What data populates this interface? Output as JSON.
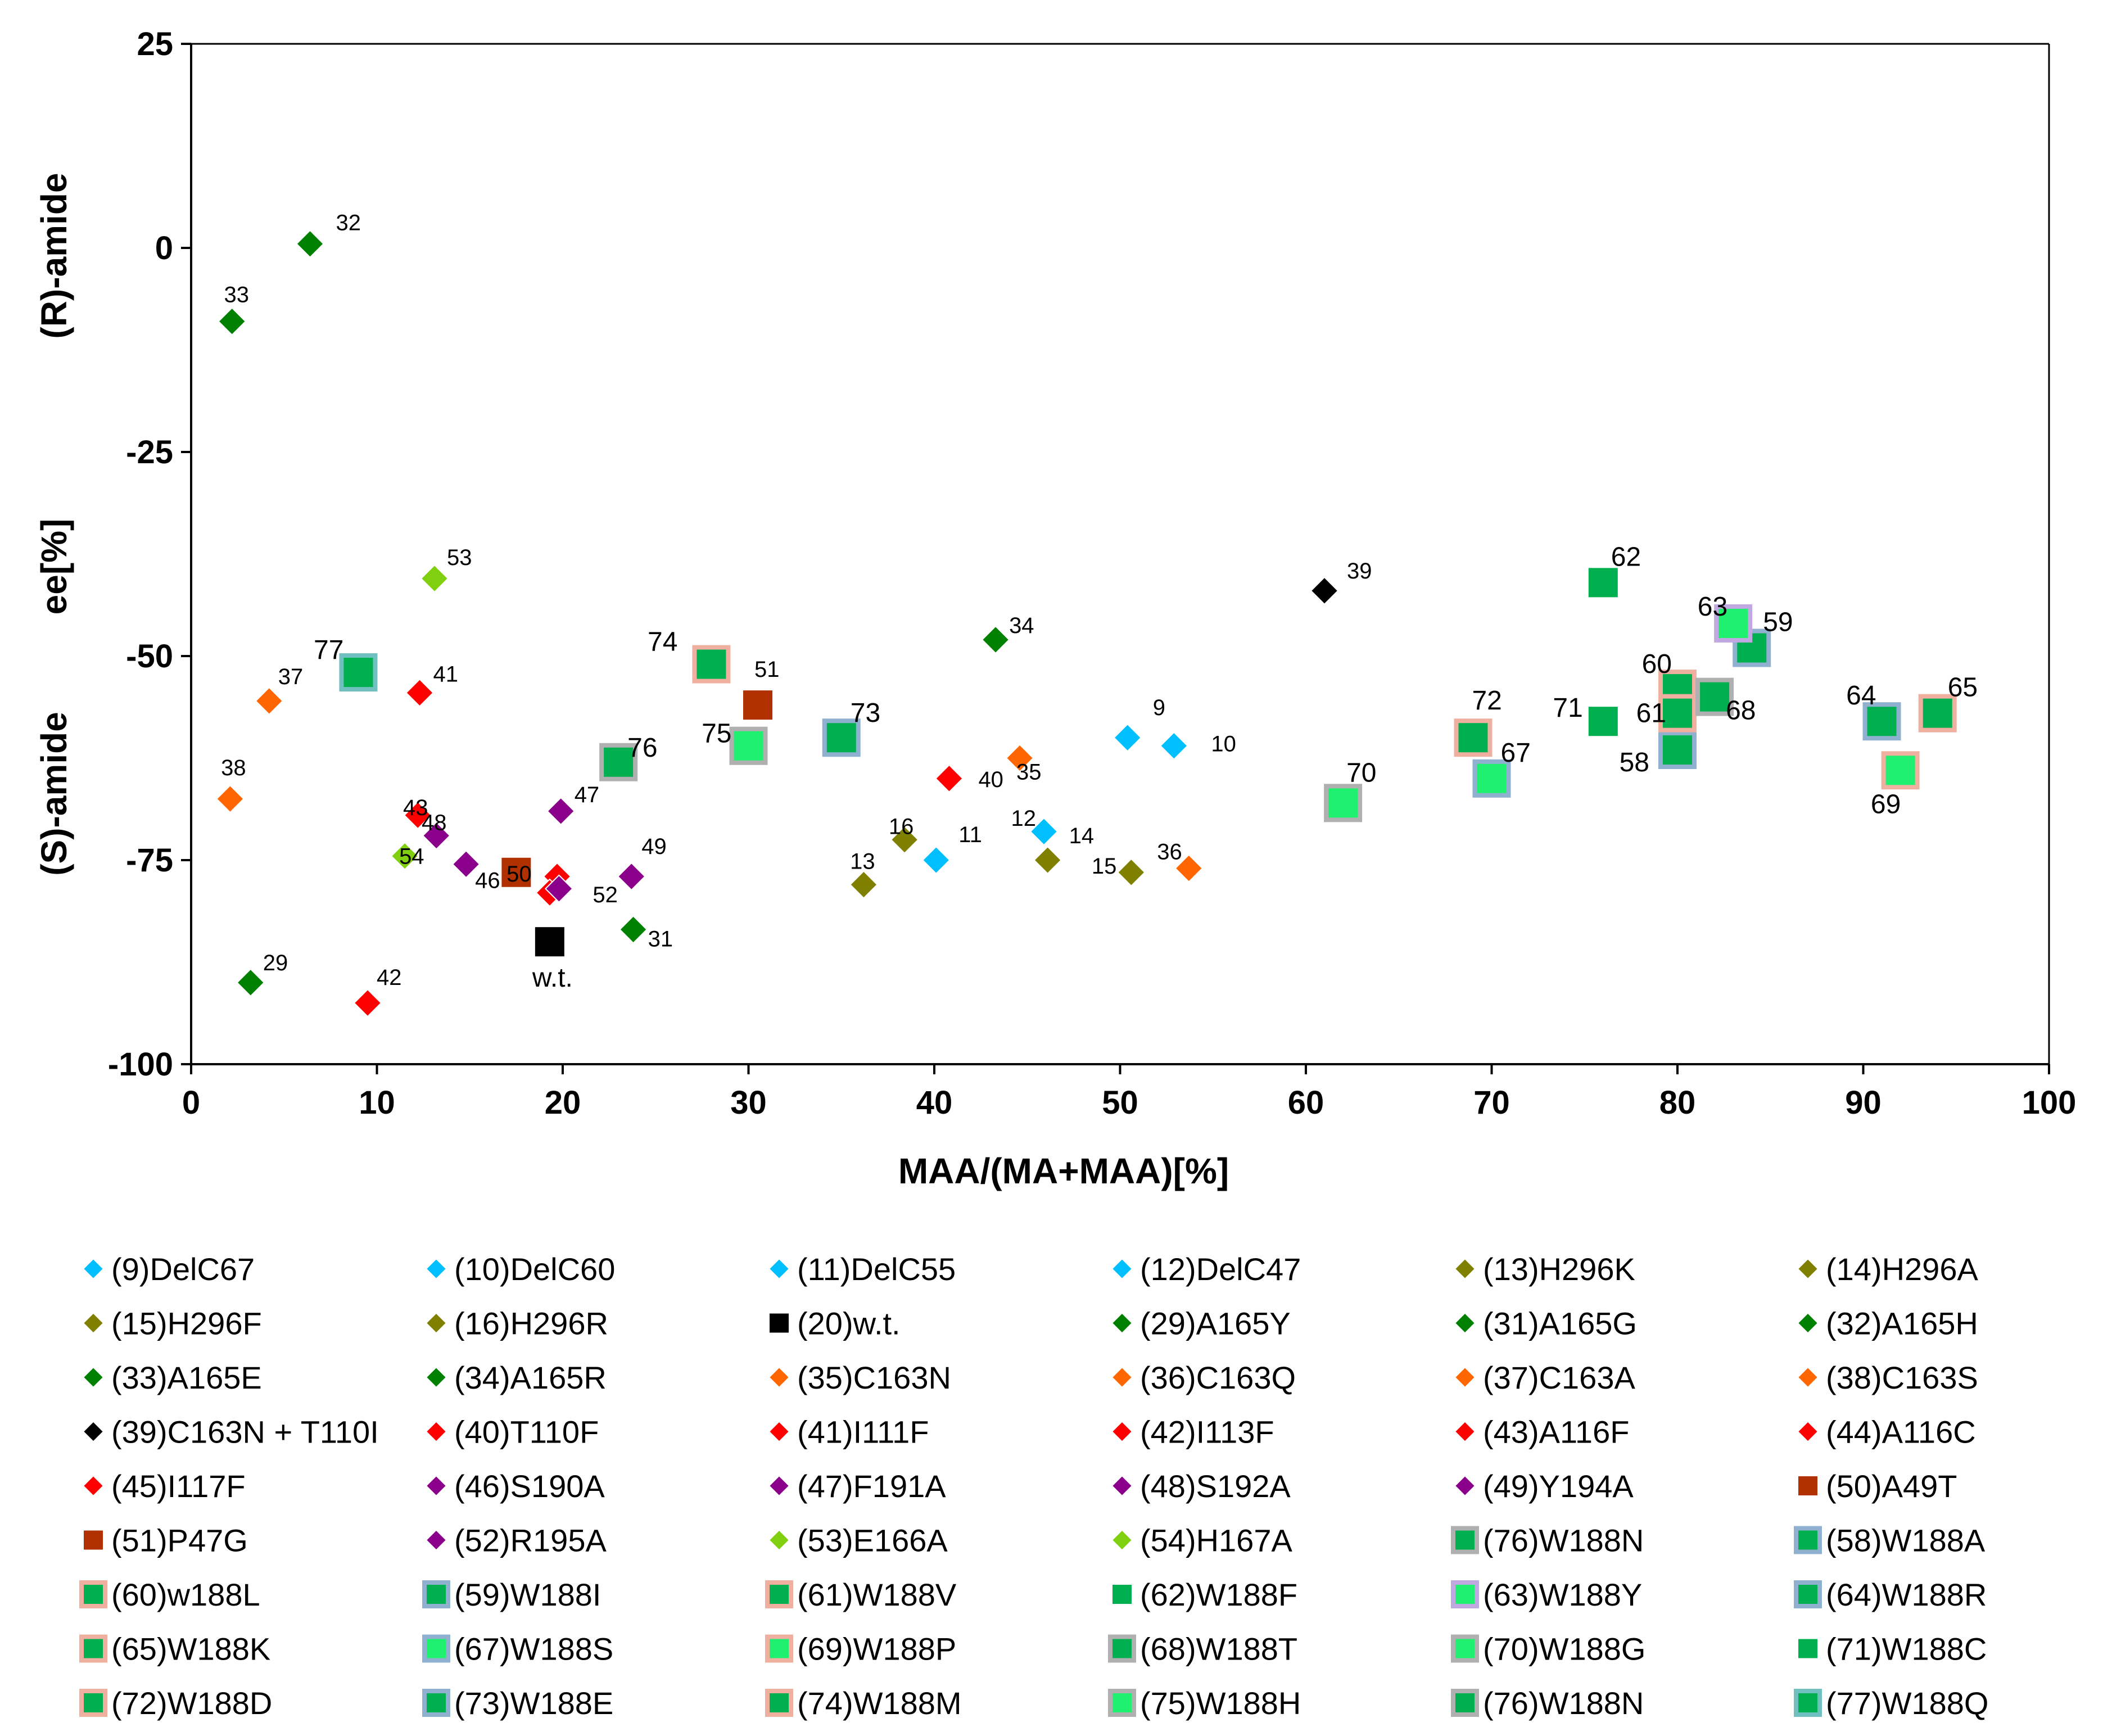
{
  "chart_data": {
    "type": "scatter",
    "xlabel": "MAA/(MA+MAA)[%]",
    "ylabel_parts": {
      "r_amide": "(R)-amide",
      "ee": "ee[%]",
      "s_amide": "(S)-amide"
    },
    "xlim": [
      0,
      100
    ],
    "ylim": [
      -100,
      25
    ],
    "x_ticks": [
      "0",
      "10",
      "20",
      "30",
      "40",
      "50",
      "60",
      "70",
      "80",
      "90",
      "100"
    ],
    "y_ticks": [
      "25",
      "0",
      "-25",
      "-50",
      "-75",
      "-100"
    ],
    "colors": {
      "delc": "#00BFFF",
      "h296": "#808000",
      "wt": "#000000",
      "a165": "#008000",
      "c163": "#FF6600",
      "c163n_t110i": "#000000",
      "red": "#FF0000",
      "purple": "#8B008B",
      "brown": "#B03000",
      "lime": "#80D010",
      "w188_dark": "#00B050",
      "w188_mid": "#10C060",
      "w188_light": "#20F070",
      "edge_pink": "#F0B0A0",
      "edge_blue": "#90B0D0",
      "edge_gray": "#B0B0B0",
      "edge_lavender": "#C0A8E0",
      "edge_teal": "#70C0C0"
    },
    "points": [
      {
        "id": "9",
        "x": 50.4,
        "y": -60,
        "shape": "diamond",
        "color": "delc",
        "label": "9"
      },
      {
        "id": "10",
        "x": 52.9,
        "y": -61,
        "shape": "diamond",
        "color": "delc",
        "label": "10"
      },
      {
        "id": "11",
        "x": 40.1,
        "y": -75,
        "shape": "diamond",
        "color": "delc",
        "label": "11"
      },
      {
        "id": "12",
        "x": 45.9,
        "y": -71.5,
        "shape": "diamond",
        "color": "delc",
        "label": "12"
      },
      {
        "id": "13",
        "x": 36.2,
        "y": -78,
        "shape": "diamond",
        "color": "h296",
        "label": "13"
      },
      {
        "id": "14",
        "x": 46.1,
        "y": -75,
        "shape": "diamond",
        "color": "h296",
        "label": "14"
      },
      {
        "id": "15",
        "x": 50.6,
        "y": -76.5,
        "shape": "diamond",
        "color": "h296",
        "label": "15"
      },
      {
        "id": "16",
        "x": 38.4,
        "y": -72.5,
        "shape": "diamond",
        "color": "h296",
        "label": "16"
      },
      {
        "id": "20",
        "x": 19.3,
        "y": -85,
        "shape": "square",
        "color": "wt",
        "label": "w.t."
      },
      {
        "id": "29",
        "x": 3.2,
        "y": -90,
        "shape": "diamond",
        "color": "a165",
        "label": "29"
      },
      {
        "id": "31",
        "x": 23.8,
        "y": -83.5,
        "shape": "diamond",
        "color": "a165",
        "label": "31"
      },
      {
        "id": "32",
        "x": 6.4,
        "y": 0.5,
        "shape": "diamond",
        "color": "a165",
        "label": "32"
      },
      {
        "id": "33",
        "x": 2.2,
        "y": -9,
        "shape": "diamond",
        "color": "a165",
        "label": "33"
      },
      {
        "id": "34",
        "x": 43.3,
        "y": -48,
        "shape": "diamond",
        "color": "a165",
        "label": "34"
      },
      {
        "id": "35",
        "x": 44.6,
        "y": -62.5,
        "shape": "diamond",
        "color": "c163",
        "label": "35"
      },
      {
        "id": "36",
        "x": 53.7,
        "y": -76,
        "shape": "diamond",
        "color": "c163",
        "label": "36"
      },
      {
        "id": "37",
        "x": 4.2,
        "y": -55.5,
        "shape": "diamond",
        "color": "c163",
        "label": "37"
      },
      {
        "id": "38",
        "x": 2.1,
        "y": -67.5,
        "shape": "diamond",
        "color": "c163",
        "label": "38"
      },
      {
        "id": "39",
        "x": 61,
        "y": -42,
        "shape": "diamond",
        "color": "c163n_t110i",
        "label": "39"
      },
      {
        "id": "40",
        "x": 40.8,
        "y": -65,
        "shape": "diamond",
        "color": "red",
        "label": "40"
      },
      {
        "id": "41",
        "x": 12.3,
        "y": -54.5,
        "shape": "diamond",
        "color": "red",
        "label": "41"
      },
      {
        "id": "42",
        "x": 9.5,
        "y": -92.5,
        "shape": "diamond",
        "color": "red",
        "label": "42"
      },
      {
        "id": "43",
        "x": 12.2,
        "y": -69.5,
        "shape": "diamond",
        "color": "red",
        "label": "43"
      },
      {
        "id": "44",
        "x": 19.7,
        "y": -77,
        "shape": "diamond",
        "color": "red",
        "label": ""
      },
      {
        "id": "45",
        "x": 19.3,
        "y": -79,
        "shape": "diamond",
        "color": "red",
        "label": ""
      },
      {
        "id": "46",
        "x": 14.8,
        "y": -75.5,
        "shape": "diamond",
        "color": "purple",
        "label": "46"
      },
      {
        "id": "47",
        "x": 19.9,
        "y": -69,
        "shape": "diamond",
        "color": "purple",
        "label": "47"
      },
      {
        "id": "48",
        "x": 13.2,
        "y": -72,
        "shape": "diamond",
        "color": "purple",
        "label": "48"
      },
      {
        "id": "49",
        "x": 23.7,
        "y": -77,
        "shape": "diamond",
        "color": "purple",
        "label": "49"
      },
      {
        "id": "50",
        "x": 17.5,
        "y": -76.5,
        "shape": "square",
        "color": "brown",
        "label": "50"
      },
      {
        "id": "51",
        "x": 30.5,
        "y": -56,
        "shape": "square",
        "color": "brown",
        "label": "51"
      },
      {
        "id": "52",
        "x": 19.8,
        "y": -78.5,
        "shape": "diamond",
        "color": "purple",
        "label": "52"
      },
      {
        "id": "53",
        "x": 13.1,
        "y": -40.5,
        "shape": "diamond",
        "color": "lime",
        "label": "53"
      },
      {
        "id": "54",
        "x": 11.5,
        "y": -74.5,
        "shape": "diamond",
        "color": "lime",
        "label": "54"
      },
      {
        "id": "58",
        "x": 80,
        "y": -61.5,
        "shape": "square",
        "color": "w188_dark",
        "edge": "edge_blue",
        "label": "58"
      },
      {
        "id": "59",
        "x": 84,
        "y": -49,
        "shape": "square",
        "color": "w188_dark",
        "edge": "edge_blue",
        "label": "59"
      },
      {
        "id": "60",
        "x": 80,
        "y": -54,
        "shape": "square",
        "color": "w188_dark",
        "edge": "edge_pink",
        "label": "60"
      },
      {
        "id": "61",
        "x": 80,
        "y": -57,
        "shape": "square",
        "color": "w188_dark",
        "edge": "edge_pink",
        "label": "61"
      },
      {
        "id": "62",
        "x": 76,
        "y": -41,
        "shape": "square",
        "color": "w188_dark",
        "edge": "none",
        "label": "62"
      },
      {
        "id": "63",
        "x": 83,
        "y": -46,
        "shape": "square",
        "color": "w188_light",
        "edge": "edge_lavender",
        "label": "63"
      },
      {
        "id": "64",
        "x": 91,
        "y": -58,
        "shape": "square",
        "color": "w188_dark",
        "edge": "edge_blue",
        "label": "64"
      },
      {
        "id": "65",
        "x": 94,
        "y": -57,
        "shape": "square",
        "color": "w188_dark",
        "edge": "edge_pink",
        "label": "65"
      },
      {
        "id": "67",
        "x": 70,
        "y": -65,
        "shape": "square",
        "color": "w188_light",
        "edge": "edge_blue",
        "label": "67"
      },
      {
        "id": "68",
        "x": 82,
        "y": -55,
        "shape": "square",
        "color": "w188_dark",
        "edge": "edge_gray",
        "label": "68"
      },
      {
        "id": "69",
        "x": 92,
        "y": -64,
        "shape": "square",
        "color": "w188_light",
        "edge": "edge_pink",
        "label": "69"
      },
      {
        "id": "70",
        "x": 62,
        "y": -68,
        "shape": "square",
        "color": "w188_light",
        "edge": "edge_gray",
        "label": "70"
      },
      {
        "id": "71",
        "x": 76,
        "y": -58,
        "shape": "square",
        "color": "w188_dark",
        "edge": "none",
        "label": "71"
      },
      {
        "id": "72",
        "x": 69,
        "y": -60,
        "shape": "square",
        "color": "w188_dark",
        "edge": "edge_pink",
        "label": "72"
      },
      {
        "id": "73",
        "x": 35,
        "y": -60,
        "shape": "square",
        "color": "w188_dark",
        "edge": "edge_blue",
        "label": "73"
      },
      {
        "id": "74",
        "x": 28,
        "y": -51,
        "shape": "square",
        "color": "w188_dark",
        "edge": "edge_pink",
        "label": "74"
      },
      {
        "id": "75",
        "x": 30,
        "y": -61,
        "shape": "square",
        "color": "w188_light",
        "edge": "edge_gray",
        "label": "75"
      },
      {
        "id": "76",
        "x": 23,
        "y": -63,
        "shape": "square",
        "color": "w188_dark",
        "edge": "edge_gray",
        "label": "76"
      },
      {
        "id": "77",
        "x": 9,
        "y": -52,
        "shape": "square",
        "color": "w188_dark",
        "edge": "edge_teal",
        "label": "77"
      }
    ],
    "legend": [
      {
        "label": "(9)DelC67",
        "shape": "diamond",
        "color": "delc"
      },
      {
        "label": "(10)DelC60",
        "shape": "diamond",
        "color": "delc"
      },
      {
        "label": "(11)DelC55",
        "shape": "diamond",
        "color": "delc"
      },
      {
        "label": "(12)DelC47",
        "shape": "diamond",
        "color": "delc"
      },
      {
        "label": "(13)H296K",
        "shape": "diamond",
        "color": "h296"
      },
      {
        "label": "(14)H296A",
        "shape": "diamond",
        "color": "h296"
      },
      {
        "label": "(15)H296F",
        "shape": "diamond",
        "color": "h296"
      },
      {
        "label": "(16)H296R",
        "shape": "diamond",
        "color": "h296"
      },
      {
        "label": "(20)w.t.",
        "shape": "square",
        "color": "wt"
      },
      {
        "label": "(29)A165Y",
        "shape": "diamond",
        "color": "a165"
      },
      {
        "label": "(31)A165G",
        "shape": "diamond",
        "color": "a165"
      },
      {
        "label": "(32)A165H",
        "shape": "diamond",
        "color": "a165"
      },
      {
        "label": "(33)A165E",
        "shape": "diamond",
        "color": "a165"
      },
      {
        "label": "(34)A165R",
        "shape": "diamond",
        "color": "a165"
      },
      {
        "label": "(35)C163N",
        "shape": "diamond",
        "color": "c163"
      },
      {
        "label": "(36)C163Q",
        "shape": "diamond",
        "color": "c163"
      },
      {
        "label": "(37)C163A",
        "shape": "diamond",
        "color": "c163"
      },
      {
        "label": "(38)C163S",
        "shape": "diamond",
        "color": "c163"
      },
      {
        "label": "(39)C163N + T110I",
        "shape": "diamond",
        "color": "c163n_t110i"
      },
      {
        "label": "(40)T110F",
        "shape": "diamond",
        "color": "red"
      },
      {
        "label": "(41)I111F",
        "shape": "diamond",
        "color": "red"
      },
      {
        "label": "(42)I113F",
        "shape": "diamond",
        "color": "red"
      },
      {
        "label": "(43)A116F",
        "shape": "diamond",
        "color": "red"
      },
      {
        "label": "(44)A116C",
        "shape": "diamond",
        "color": "red"
      },
      {
        "label": "(45)I117F",
        "shape": "diamond",
        "color": "red"
      },
      {
        "label": "(46)S190A",
        "shape": "diamond",
        "color": "purple"
      },
      {
        "label": "(47)F191A",
        "shape": "diamond",
        "color": "purple"
      },
      {
        "label": "(48)S192A",
        "shape": "diamond",
        "color": "purple"
      },
      {
        "label": "(49)Y194A",
        "shape": "diamond",
        "color": "purple"
      },
      {
        "label": "(50)A49T",
        "shape": "square",
        "color": "brown"
      },
      {
        "label": "(51)P47G",
        "shape": "square",
        "color": "brown"
      },
      {
        "label": "(52)R195A",
        "shape": "diamond",
        "color": "purple"
      },
      {
        "label": "(53)E166A",
        "shape": "diamond",
        "color": "lime"
      },
      {
        "label": "(54)H167A",
        "shape": "diamond",
        "color": "lime"
      },
      {
        "label": "(76)W188N",
        "shape": "square",
        "color": "w188_dark",
        "edge": "edge_gray"
      },
      {
        "label": "(58)W188A",
        "shape": "square",
        "color": "w188_dark",
        "edge": "edge_blue"
      },
      {
        "label": "(60)w188L",
        "shape": "square",
        "color": "w188_dark",
        "edge": "edge_pink"
      },
      {
        "label": "(59)W188I",
        "shape": "square",
        "color": "w188_dark",
        "edge": "edge_blue"
      },
      {
        "label": "(61)W188V",
        "shape": "square",
        "color": "w188_dark",
        "edge": "edge_pink"
      },
      {
        "label": "(62)W188F",
        "shape": "square",
        "color": "w188_dark",
        "edge": "none"
      },
      {
        "label": "(63)W188Y",
        "shape": "square",
        "color": "w188_light",
        "edge": "edge_lavender"
      },
      {
        "label": "(64)W188R",
        "shape": "square",
        "color": "w188_dark",
        "edge": "edge_blue"
      },
      {
        "label": "(65)W188K",
        "shape": "square",
        "color": "w188_dark",
        "edge": "edge_pink"
      },
      {
        "label": "(67)W188S",
        "shape": "square",
        "color": "w188_light",
        "edge": "edge_blue"
      },
      {
        "label": "(69)W188P",
        "shape": "square",
        "color": "w188_light",
        "edge": "edge_pink"
      },
      {
        "label": "(68)W188T",
        "shape": "square",
        "color": "w188_dark",
        "edge": "edge_gray"
      },
      {
        "label": "(70)W188G",
        "shape": "square",
        "color": "w188_light",
        "edge": "edge_gray"
      },
      {
        "label": "(71)W188C",
        "shape": "square",
        "color": "w188_dark",
        "edge": "none"
      },
      {
        "label": "(72)W188D",
        "shape": "square",
        "color": "w188_dark",
        "edge": "edge_pink"
      },
      {
        "label": "(73)W188E",
        "shape": "square",
        "color": "w188_dark",
        "edge": "edge_blue"
      },
      {
        "label": "(74)W188M",
        "shape": "square",
        "color": "w188_dark",
        "edge": "edge_pink"
      },
      {
        "label": "(75)W188H",
        "shape": "square",
        "color": "w188_light",
        "edge": "edge_gray"
      },
      {
        "label": "(76)W188N",
        "shape": "square",
        "color": "w188_dark",
        "edge": "edge_gray"
      },
      {
        "label": "(77)W188Q",
        "shape": "square",
        "color": "w188_dark",
        "edge": "edge_teal"
      }
    ]
  }
}
